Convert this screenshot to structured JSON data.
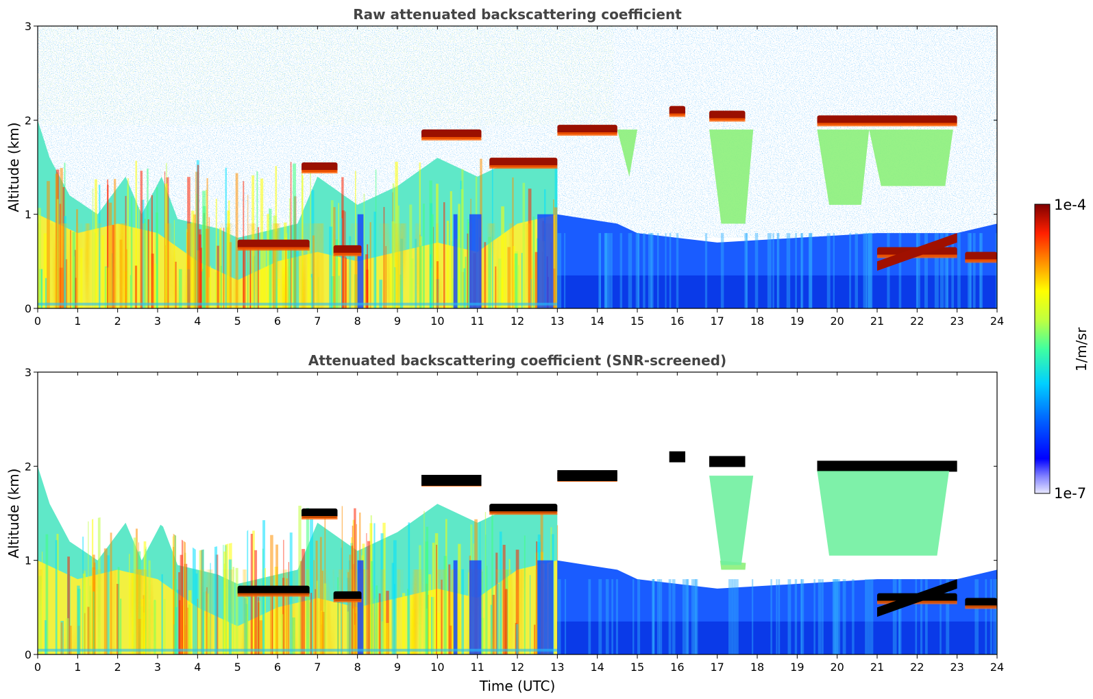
{
  "figure": {
    "colorbar": {
      "label": "1/m/sr",
      "max_label": "1e-4",
      "min_label": "1e-7",
      "scale": "log",
      "colormap": [
        "#0000b0",
        "#0000ff",
        "#0080ff",
        "#00e0ff",
        "#40ff80",
        "#c0ff40",
        "#ffff00",
        "#ff9000",
        "#ff2000",
        "#800000"
      ]
    }
  },
  "chart_data": [
    {
      "type": "heatmap",
      "title": "Raw attenuated backscattering coefficient",
      "xlabel": "",
      "ylabel": "Altitude (km)",
      "xlim": [
        0,
        24
      ],
      "ylim": [
        0,
        3
      ],
      "xticks": [
        "0",
        "1",
        "2",
        "3",
        "4",
        "5",
        "6",
        "7",
        "8",
        "9",
        "10",
        "11",
        "12",
        "13",
        "14",
        "15",
        "16",
        "17",
        "18",
        "19",
        "20",
        "21",
        "22",
        "23",
        "24"
      ],
      "yticks": [
        "0",
        "1",
        "2",
        "3"
      ],
      "cloud_layers": [
        {
          "t0": 6.6,
          "t1": 7.5,
          "z": 1.5
        },
        {
          "t0": 9.6,
          "t1": 11.1,
          "z": 1.85
        },
        {
          "t0": 11.3,
          "t1": 13.0,
          "z": 1.55
        },
        {
          "t0": 13.0,
          "t1": 14.5,
          "z": 1.9
        },
        {
          "t0": 15.8,
          "t1": 16.2,
          "z": 2.1
        },
        {
          "t0": 16.8,
          "t1": 17.7,
          "z": 2.05
        },
        {
          "t0": 19.5,
          "t1": 23.0,
          "z": 2.0
        },
        {
          "t0": 5.0,
          "t1": 6.8,
          "z": 0.68
        },
        {
          "t0": 7.4,
          "t1": 8.1,
          "z": 0.62
        },
        {
          "t0": 21.0,
          "t1": 23.0,
          "z": 0.6
        },
        {
          "t0": 23.2,
          "t1": 24.0,
          "z": 0.55
        }
      ]
    },
    {
      "type": "heatmap",
      "title": "Attenuated backscattering coefficient (SNR-screened)",
      "xlabel": "Time (UTC)",
      "ylabel": "Altitude (km)",
      "xlim": [
        0,
        24
      ],
      "ylim": [
        0,
        3
      ],
      "xticks": [
        "0",
        "1",
        "2",
        "3",
        "4",
        "5",
        "6",
        "7",
        "8",
        "9",
        "10",
        "11",
        "12",
        "13",
        "14",
        "15",
        "16",
        "17",
        "18",
        "19",
        "20",
        "21",
        "22",
        "23",
        "24"
      ],
      "yticks": [
        "0",
        "1",
        "2",
        "3"
      ]
    }
  ]
}
